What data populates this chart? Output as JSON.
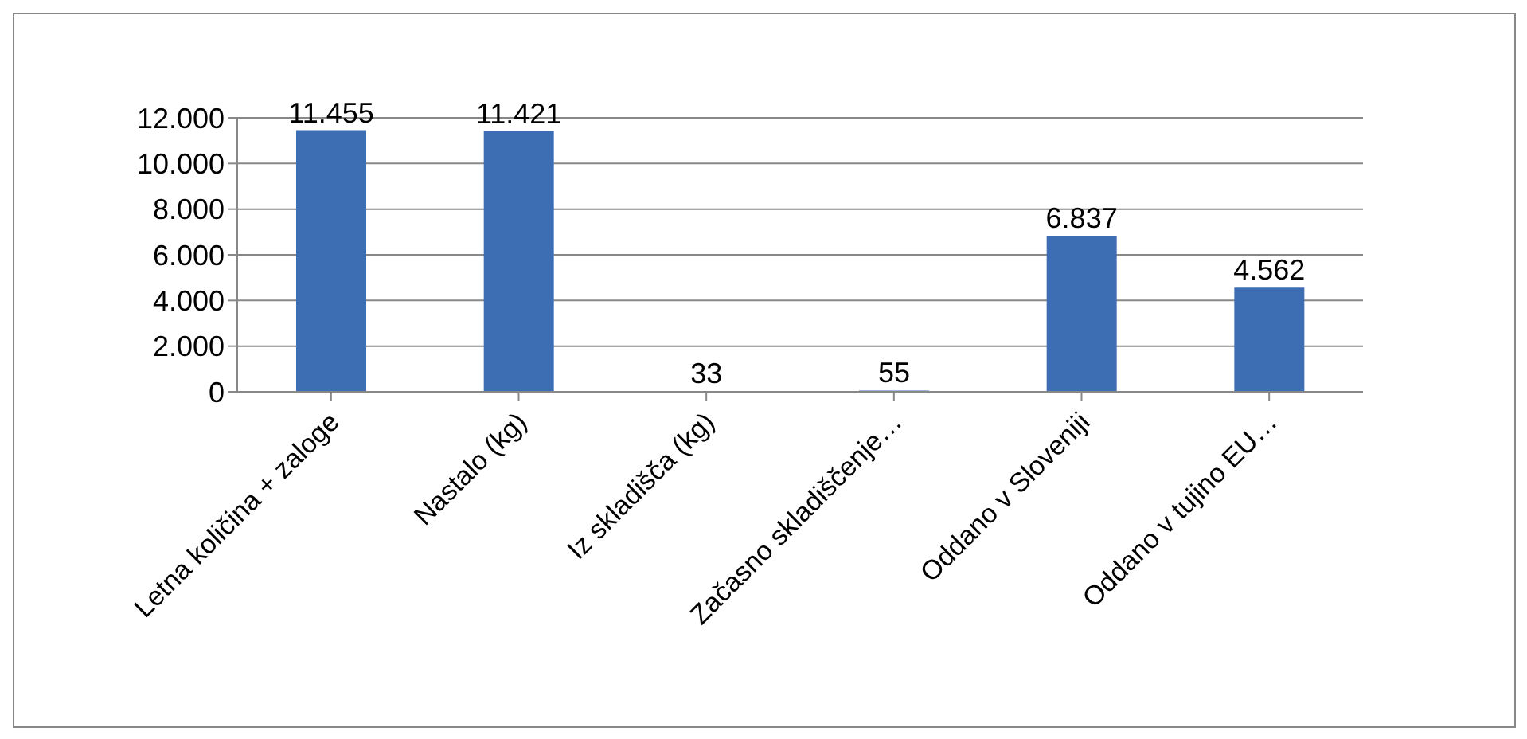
{
  "chart_data": {
    "type": "bar",
    "categories": [
      "Letna količina + zaloge",
      "Nastalo (kg)",
      "Iz skladišča (kg)",
      "Začasno skladiščenje…",
      "Oddano v Sloveniji",
      "Oddano v tujino EU…"
    ],
    "values": [
      11455,
      11421,
      33,
      55,
      6837,
      4562
    ],
    "value_labels": [
      "11.455",
      "11.421",
      "33",
      "55",
      "6.837",
      "4.562"
    ],
    "color": "#3d6eb4",
    "ylim": [
      0,
      12000
    ],
    "yticks": [
      {
        "value": 0,
        "label": "0"
      },
      {
        "value": 2000,
        "label": "2.000"
      },
      {
        "value": 4000,
        "label": "4.000"
      },
      {
        "value": 6000,
        "label": "6.000"
      },
      {
        "value": 8000,
        "label": "8.000"
      },
      {
        "value": 10000,
        "label": "10.000"
      },
      {
        "value": 12000,
        "label": "12.000"
      }
    ],
    "grid": "y",
    "legend": false
  }
}
